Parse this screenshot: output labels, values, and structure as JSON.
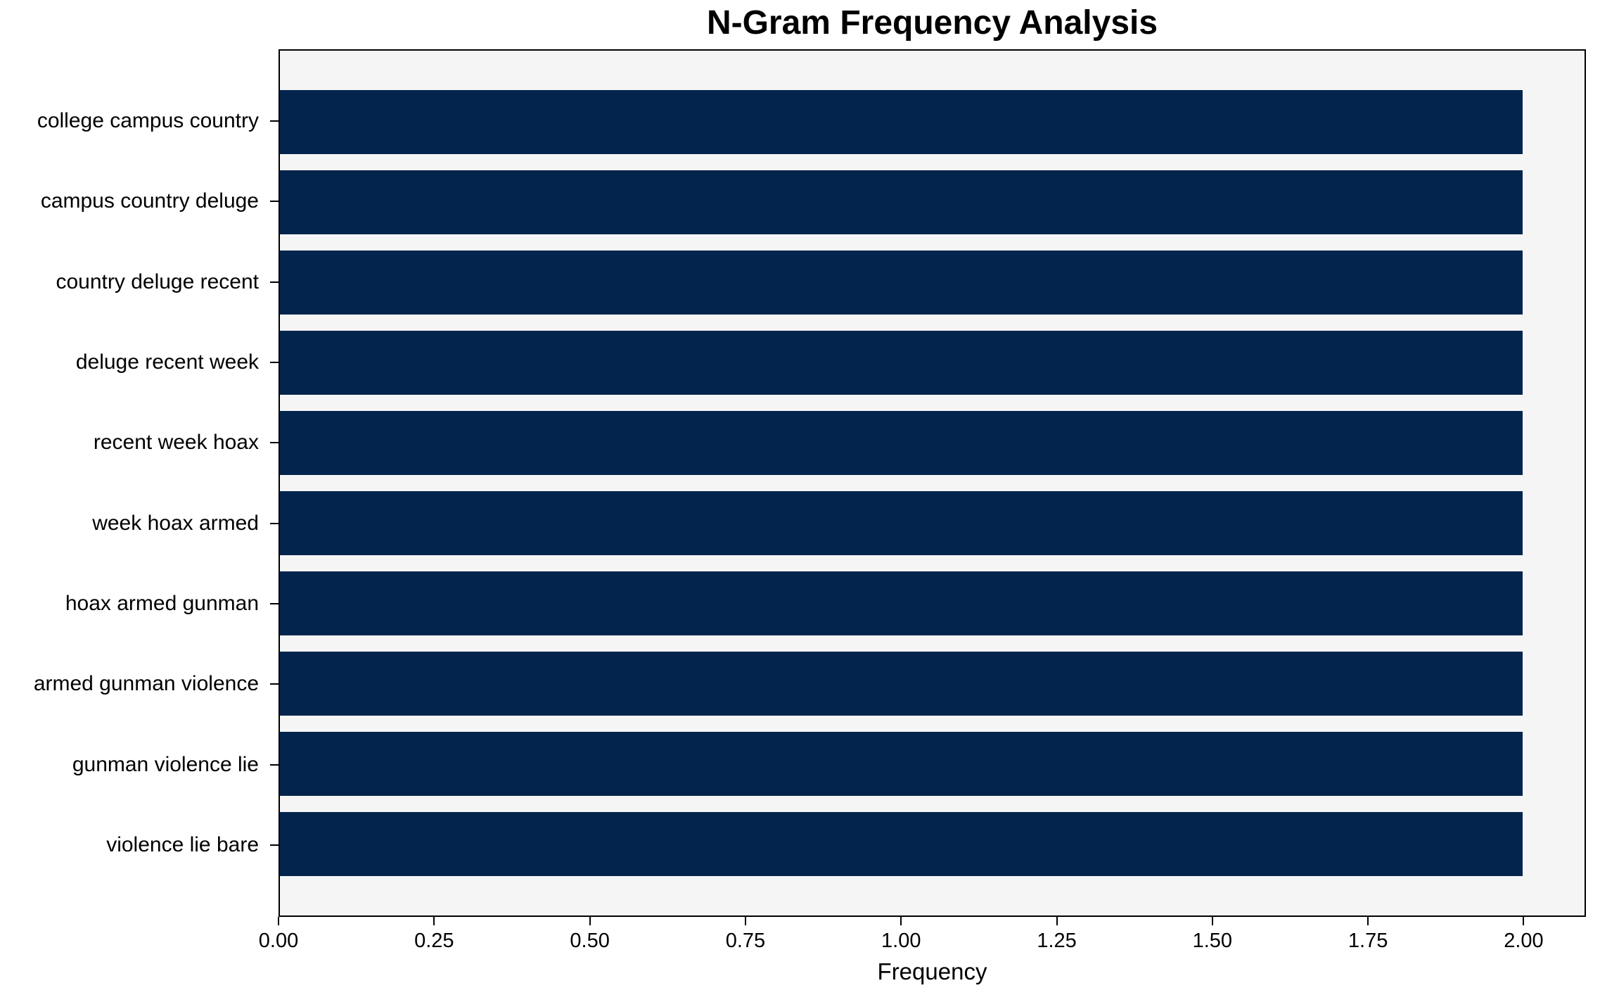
{
  "chart_data": {
    "type": "bar",
    "orientation": "horizontal",
    "title": "N-Gram Frequency Analysis",
    "xlabel": "Frequency",
    "ylabel": "",
    "categories": [
      "college campus country",
      "campus country deluge",
      "country deluge recent",
      "deluge recent week",
      "recent week hoax",
      "week hoax armed",
      "hoax armed gunman",
      "armed gunman violence",
      "gunman violence lie",
      "violence lie bare"
    ],
    "values": [
      2,
      2,
      2,
      2,
      2,
      2,
      2,
      2,
      2,
      2
    ],
    "xlim": [
      0,
      2.1
    ],
    "xticks": [
      0,
      0.25,
      0.5,
      0.75,
      1.0,
      1.25,
      1.5,
      1.75,
      2.0
    ],
    "xtick_labels": [
      "0.00",
      "0.25",
      "0.50",
      "0.75",
      "1.00",
      "1.25",
      "1.50",
      "1.75",
      "2.00"
    ],
    "grid": false,
    "legend": null,
    "bar_height_fraction": 0.8,
    "colors": {
      "bar": "#03254d",
      "plot_background": "#f5f5f5",
      "figure_background": "#ffffff",
      "spine": "#000000",
      "text": "#000000"
    }
  }
}
